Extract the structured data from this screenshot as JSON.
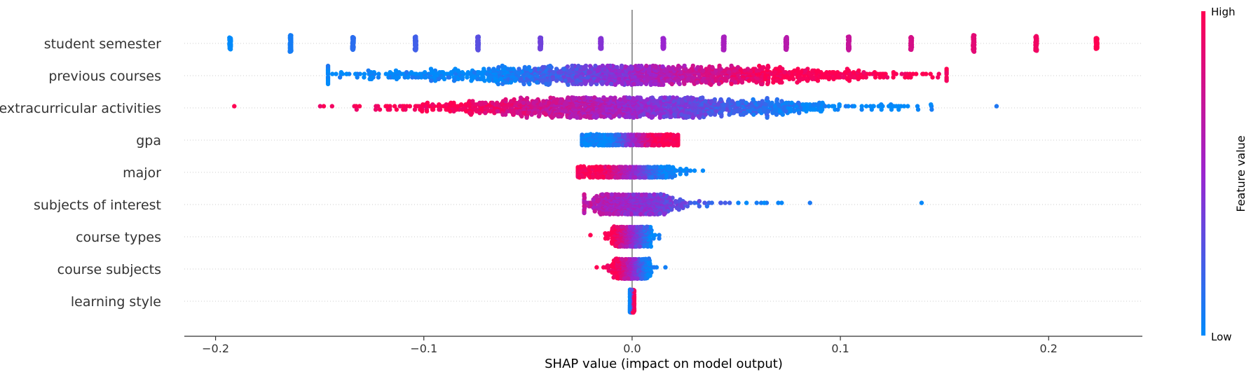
{
  "chart_data": {
    "type": "scatter",
    "title": "",
    "xlabel": "SHAP value (impact on model output)",
    "ylabel": "",
    "xlim": [
      -0.215,
      0.245
    ],
    "xticks": [
      -0.2,
      -0.1,
      0.0,
      0.1,
      0.2
    ],
    "xtick_labels": [
      "−0.2",
      "−0.1",
      "0.0",
      "0.1",
      "0.2"
    ],
    "grid": "horizontal dotted lines per feature",
    "zero_line": 0.0,
    "colormap": {
      "low": "#008bfb",
      "mid": "#9b25cf",
      "high": "#ff0052"
    },
    "colorbar": {
      "title": "Feature value",
      "high_label": "High",
      "low_label": "Low",
      "placement": "right"
    },
    "features": [
      {
        "name": "student semester",
        "min": -0.193,
        "max": 0.223,
        "spread": "discrete",
        "clusters": [
          {
            "x": -0.193,
            "v": 0.0,
            "w": 0.6
          },
          {
            "x": -0.164,
            "v": 0.07,
            "w": 0.85
          },
          {
            "x": -0.134,
            "v": 0.14,
            "w": 0.65
          },
          {
            "x": -0.104,
            "v": 0.21,
            "w": 0.7
          },
          {
            "x": -0.074,
            "v": 0.29,
            "w": 0.7
          },
          {
            "x": -0.044,
            "v": 0.36,
            "w": 0.6
          },
          {
            "x": -0.015,
            "v": 0.43,
            "w": 0.55
          },
          {
            "x": 0.015,
            "v": 0.5,
            "w": 0.55
          },
          {
            "x": 0.044,
            "v": 0.57,
            "w": 0.7
          },
          {
            "x": 0.074,
            "v": 0.64,
            "w": 0.65
          },
          {
            "x": 0.104,
            "v": 0.71,
            "w": 0.7
          },
          {
            "x": 0.134,
            "v": 0.79,
            "w": 0.65
          },
          {
            "x": 0.164,
            "v": 0.86,
            "w": 0.85
          },
          {
            "x": 0.194,
            "v": 0.93,
            "w": 0.75
          },
          {
            "x": 0.223,
            "v": 1.0,
            "w": 0.55
          }
        ]
      },
      {
        "name": "previous courses",
        "min": -0.146,
        "max": 0.151,
        "spread": "wide",
        "direction": "positive",
        "density_center": 0.0,
        "density_width": 0.06,
        "max_half_height": 0.28
      },
      {
        "name": "extracurricular activities",
        "min": -0.191,
        "max": 0.175,
        "spread": "wide",
        "direction": "negative",
        "density_center": 0.0,
        "density_width": 0.05,
        "max_half_height": 0.3
      },
      {
        "name": "gpa",
        "min": -0.024,
        "max": 0.022,
        "spread": "medium",
        "direction": "positive",
        "density_center": 0.0,
        "density_width": 0.014,
        "max_half_height": 0.16
      },
      {
        "name": "major",
        "min": -0.026,
        "max": 0.034,
        "spread": "medium",
        "direction": "negative",
        "density_center": 0.0,
        "density_width": 0.01,
        "max_half_height": 0.16
      },
      {
        "name": "subjects of interest",
        "min": -0.023,
        "max": 0.139,
        "spread": "skewed",
        "direction": "negative",
        "density_center": 0.0,
        "density_width": 0.009,
        "max_half_height": 0.3
      },
      {
        "name": "course types",
        "min": -0.02,
        "max": 0.013,
        "spread": "narrow",
        "direction": "negative",
        "density_center": 0.0,
        "density_width": 0.004,
        "max_half_height": 0.3
      },
      {
        "name": "course subjects",
        "min": -0.017,
        "max": 0.016,
        "spread": "narrow",
        "direction": "negative",
        "density_center": 0.0,
        "density_width": 0.004,
        "max_half_height": 0.3
      },
      {
        "name": "learning style",
        "min": -0.001,
        "max": 0.001,
        "spread": "tight",
        "direction": "positive",
        "density_center": 0.0,
        "density_width": 0.0006,
        "max_half_height": 0.35
      }
    ]
  }
}
